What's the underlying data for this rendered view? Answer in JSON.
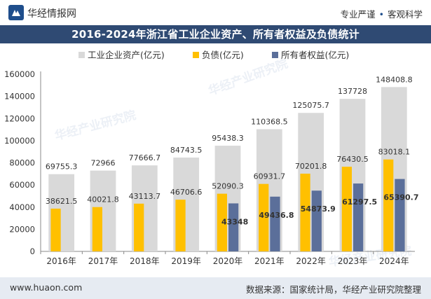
{
  "header": {
    "brand": "华经情报网",
    "tagline_left": "专业严谨",
    "tagline_right": "客观科学",
    "title": "2016-2024年浙江省工业企业资产、所有者权益及负债统计"
  },
  "footer": {
    "website": "www.huaon.com",
    "source": "数据来源：国家统计局，华经产业研究院整理"
  },
  "watermark": {
    "text": "华经产业研究院",
    "url": "www.huaon.com"
  },
  "colors": {
    "assets": "#d9d9d9",
    "liabilities": "#ffc000",
    "equity": "#5b6f9a",
    "title_bg": "#2f4a73",
    "footer_bg": "#e6ebf2"
  },
  "chart_data": {
    "type": "bar",
    "categories": [
      "2016年",
      "2017年",
      "2018年",
      "2019年",
      "2020年",
      "2021年",
      "2022年",
      "2023年",
      "2024年"
    ],
    "series": [
      {
        "name": "工业企业资产(亿元)",
        "values": [
          69755.3,
          72966,
          77666.7,
          84743.5,
          95438.3,
          110368.5,
          125075.7,
          137728,
          148408.8
        ]
      },
      {
        "name": "负债(亿元)",
        "values": [
          38621.5,
          40021.8,
          43113.7,
          46706.6,
          52090.3,
          60931.7,
          70201.8,
          76430.5,
          83018.1
        ]
      },
      {
        "name": "所有者权益(亿元)",
        "values": [
          null,
          null,
          null,
          null,
          43348,
          49436.8,
          54873.9,
          61297.5,
          65390.7
        ]
      }
    ],
    "data_labels": {
      "assets": [
        "69755.3",
        "72966",
        "77666.7",
        "84743.5",
        "95438.3",
        "110368.5",
        "125075.7",
        "137728",
        "148408.8"
      ],
      "liabilities": [
        "38621.5",
        "40021.8",
        "43113.7",
        "46706.6",
        "52090.3",
        "60931.7",
        "70201.8",
        "76430.5",
        "83018.1"
      ],
      "equity": [
        "",
        "",
        "",
        "",
        "43348",
        "49436.8",
        "54873.9",
        "61297.5",
        "65390.7"
      ]
    },
    "yticks": [
      "0",
      "20000",
      "40000",
      "60000",
      "80000",
      "100000",
      "120000",
      "140000",
      "160000"
    ],
    "ylim": [
      0,
      160000
    ],
    "legend_position": "top-center",
    "grid": false
  }
}
